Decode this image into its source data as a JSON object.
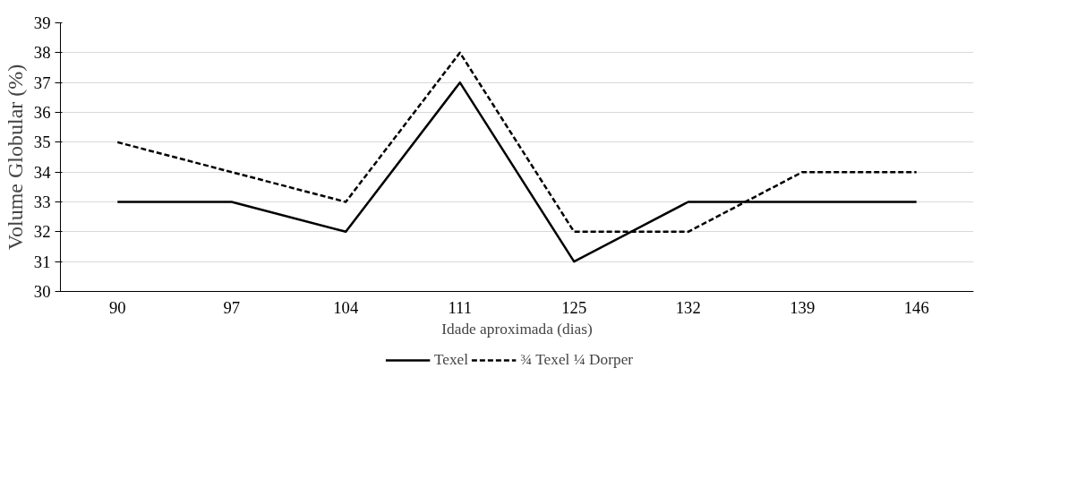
{
  "chart_data": {
    "type": "line",
    "xlabel": "Idade aproximada (dias)",
    "ylabel": "Volume Globular (%)",
    "categories": [
      "90",
      "97",
      "104",
      "111",
      "125",
      "132",
      "139",
      "146"
    ],
    "series": [
      {
        "name": "Texel",
        "color": "#000000",
        "line_style": "solid",
        "values": [
          33,
          33,
          32,
          37,
          31,
          33,
          33,
          33
        ]
      },
      {
        "name": "¾ Texel ¼ Dorper",
        "color": "#000000",
        "line_style": "dashed",
        "values": [
          35,
          34,
          33,
          38,
          32,
          32,
          34,
          34
        ]
      }
    ],
    "ylim": [
      30,
      39
    ],
    "yticks": [
      30,
      31,
      32,
      33,
      34,
      35,
      36,
      37,
      38,
      39
    ],
    "grid": "y",
    "legend": "bottom",
    "marker": "none"
  }
}
